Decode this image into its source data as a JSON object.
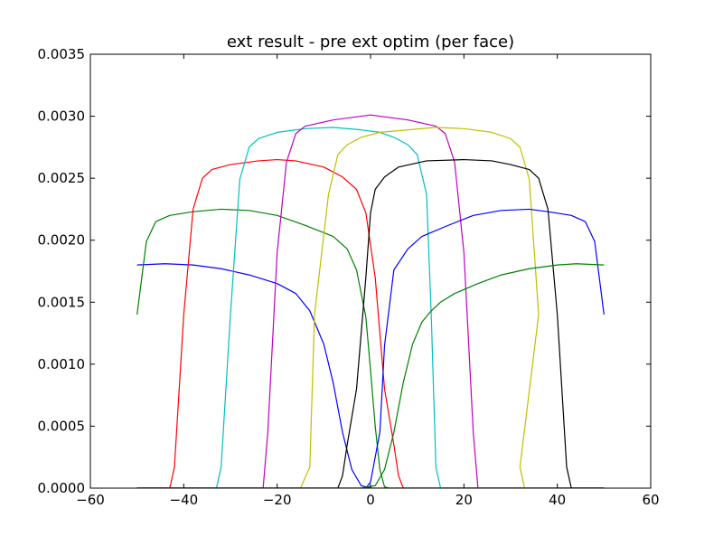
{
  "chart_data": {
    "type": "line",
    "title": "ext result - pre ext optim (per face)",
    "xlabel": "",
    "ylabel": "",
    "xlim": [
      -60,
      60
    ],
    "ylim": [
      0,
      0.0035
    ],
    "xticks": [
      -60,
      -40,
      -20,
      0,
      20,
      40,
      60
    ],
    "xtick_labels": [
      "−60",
      "−40",
      "−20",
      "0",
      "20",
      "40",
      "60"
    ],
    "yticks": [
      0,
      0.0005,
      0.001,
      0.0015,
      0.002,
      0.0025,
      0.003,
      0.0035
    ],
    "ytick_labels": [
      "0.0000",
      "0.0005",
      "0.0010",
      "0.0015",
      "0.0020",
      "0.0025",
      "0.0030",
      "0.0035"
    ],
    "grid": false,
    "legend": "none",
    "series": [
      {
        "color": "#0000ff",
        "points": [
          [
            -50,
            0.0018
          ],
          [
            -44,
            0.00181
          ],
          [
            -38,
            0.0018
          ],
          [
            -32,
            0.00177
          ],
          [
            -26,
            0.00172
          ],
          [
            -20,
            0.00165
          ],
          [
            -16,
            0.00157
          ],
          [
            -13,
            0.00143
          ],
          [
            -10,
            0.00116
          ],
          [
            -8,
            0.00085
          ],
          [
            -6,
            0.00045
          ],
          [
            -4,
            0.00015
          ],
          [
            -2,
            2e-05
          ],
          [
            0,
            0.0
          ],
          [
            50,
            0.0
          ]
        ]
      },
      {
        "color": "#008000",
        "points": [
          [
            -50,
            0.0014
          ],
          [
            -48,
            0.00199
          ],
          [
            -46,
            0.00215
          ],
          [
            -43,
            0.0022
          ],
          [
            -38,
            0.00223
          ],
          [
            -32,
            0.00225
          ],
          [
            -26,
            0.00224
          ],
          [
            -20,
            0.0022
          ],
          [
            -14,
            0.00212
          ],
          [
            -8,
            0.00203
          ],
          [
            -5,
            0.00193
          ],
          [
            -3,
            0.00176
          ],
          [
            -1,
            0.00138
          ],
          [
            0,
            0.00095
          ],
          [
            1,
            0.0005
          ],
          [
            2,
            0.00015
          ],
          [
            3,
            1e-05
          ],
          [
            4,
            0.0
          ],
          [
            50,
            0.0
          ]
        ]
      },
      {
        "color": "#ff0000",
        "points": [
          [
            -50,
            0.0
          ],
          [
            -43,
            0.0
          ],
          [
            -42,
            0.00017
          ],
          [
            -40,
            0.0014
          ],
          [
            -38,
            0.00225
          ],
          [
            -36,
            0.0025
          ],
          [
            -34,
            0.00257
          ],
          [
            -30,
            0.00261
          ],
          [
            -24,
            0.00264
          ],
          [
            -20,
            0.00265
          ],
          [
            -16,
            0.00264
          ],
          [
            -10,
            0.00259
          ],
          [
            -6,
            0.00251
          ],
          [
            -3,
            0.00241
          ],
          [
            -1,
            0.00222
          ],
          [
            1,
            0.0017
          ],
          [
            2,
            0.00125
          ],
          [
            3,
            0.0008
          ],
          [
            5,
            0.00035
          ],
          [
            6,
            0.0001
          ],
          [
            7,
            0.0
          ],
          [
            50,
            0.0
          ]
        ]
      },
      {
        "color": "#00bfbf",
        "points": [
          [
            -50,
            0.0
          ],
          [
            -33,
            0.0
          ],
          [
            -32,
            0.00017
          ],
          [
            -30,
            0.0014
          ],
          [
            -28,
            0.00249
          ],
          [
            -26,
            0.00275
          ],
          [
            -24,
            0.00282
          ],
          [
            -20,
            0.00287
          ],
          [
            -14,
            0.0029
          ],
          [
            -8,
            0.00291
          ],
          [
            -2,
            0.00289
          ],
          [
            2,
            0.00287
          ],
          [
            5,
            0.00283
          ],
          [
            8,
            0.00277
          ],
          [
            10,
            0.00269
          ],
          [
            12,
            0.00237
          ],
          [
            13,
            0.0014
          ],
          [
            14,
            0.00017
          ],
          [
            15,
            0.0
          ],
          [
            50,
            0.0
          ]
        ]
      },
      {
        "color": "#bf00bf",
        "points": [
          [
            -50,
            0.0
          ],
          [
            -23,
            0.0
          ],
          [
            -22,
            0.00045
          ],
          [
            -20,
            0.0019
          ],
          [
            -18,
            0.00263
          ],
          [
            -16,
            0.00286
          ],
          [
            -14,
            0.00292
          ],
          [
            -8,
            0.00297
          ],
          [
            0,
            0.00301
          ],
          [
            8,
            0.00297
          ],
          [
            14,
            0.00292
          ],
          [
            16,
            0.00286
          ],
          [
            18,
            0.00263
          ],
          [
            20,
            0.0019
          ],
          [
            22,
            0.00045
          ],
          [
            23,
            0.0
          ],
          [
            50,
            0.0
          ]
        ]
      },
      {
        "color": "#bfbf00",
        "points": [
          [
            -50,
            0.0
          ],
          [
            -15,
            0.0
          ],
          [
            -13,
            0.00017
          ],
          [
            -12,
            0.0014
          ],
          [
            -9,
            0.00237
          ],
          [
            -7,
            0.00269
          ],
          [
            -5,
            0.00277
          ],
          [
            -2,
            0.00283
          ],
          [
            2,
            0.00287
          ],
          [
            8,
            0.00289
          ],
          [
            14,
            0.00291
          ],
          [
            20,
            0.0029
          ],
          [
            26,
            0.00287
          ],
          [
            30,
            0.00282
          ],
          [
            32,
            0.00275
          ],
          [
            34,
            0.00249
          ],
          [
            36,
            0.0014
          ],
          [
            32,
            0.00017
          ],
          [
            33,
            0.0
          ],
          [
            50,
            0.0
          ]
        ]
      },
      {
        "color": "#000000",
        "points": [
          [
            -50,
            0.0
          ],
          [
            -7,
            0.0
          ],
          [
            -6,
            0.0001
          ],
          [
            -5,
            0.00035
          ],
          [
            -3,
            0.0008
          ],
          [
            -2,
            0.00125
          ],
          [
            -1,
            0.0017
          ],
          [
            0,
            0.00222
          ],
          [
            1,
            0.00241
          ],
          [
            3,
            0.00251
          ],
          [
            6,
            0.00259
          ],
          [
            12,
            0.00264
          ],
          [
            20,
            0.00265
          ],
          [
            26,
            0.00264
          ],
          [
            30,
            0.00261
          ],
          [
            34,
            0.00257
          ],
          [
            36,
            0.0025
          ],
          [
            38,
            0.00225
          ],
          [
            40,
            0.0014
          ],
          [
            42,
            0.00017
          ],
          [
            43,
            0.0
          ],
          [
            50,
            0.0
          ]
        ]
      },
      {
        "color": "#0000ff",
        "points": [
          [
            -50,
            0.0
          ],
          [
            -1,
            0.0
          ],
          [
            0,
            5e-05
          ],
          [
            2,
            0.00045
          ],
          [
            3,
            0.00115
          ],
          [
            5,
            0.00176
          ],
          [
            8,
            0.00193
          ],
          [
            11,
            0.00203
          ],
          [
            16,
            0.00211
          ],
          [
            22,
            0.0022
          ],
          [
            28,
            0.00224
          ],
          [
            34,
            0.00225
          ],
          [
            38,
            0.00223
          ],
          [
            43,
            0.0022
          ],
          [
            46,
            0.00215
          ],
          [
            48,
            0.00199
          ],
          [
            50,
            0.0014
          ]
        ]
      },
      {
        "color": "#008000",
        "points": [
          [
            -50,
            0.0
          ],
          [
            -2,
            0.0
          ],
          [
            1,
            2e-05
          ],
          [
            3,
            0.00015
          ],
          [
            5,
            0.00045
          ],
          [
            7,
            0.00085
          ],
          [
            9,
            0.00116
          ],
          [
            11,
            0.00134
          ],
          [
            13,
            0.00143
          ],
          [
            15,
            0.0015
          ],
          [
            18,
            0.00157
          ],
          [
            23,
            0.00165
          ],
          [
            28,
            0.00172
          ],
          [
            34,
            0.00177
          ],
          [
            40,
            0.0018
          ],
          [
            44,
            0.00181
          ],
          [
            50,
            0.0018
          ]
        ]
      }
    ]
  }
}
